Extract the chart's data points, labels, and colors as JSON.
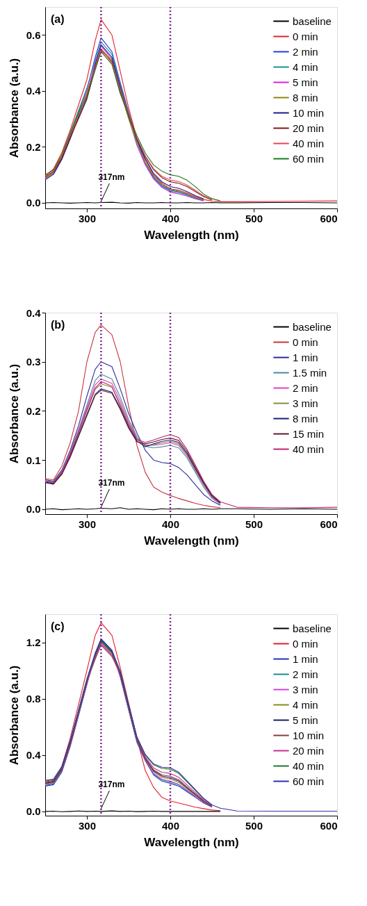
{
  "chart_data": [
    {
      "type": "line",
      "title": "(a)",
      "xlabel": "Wavelength (nm)",
      "ylabel": "Absorbance (a.u.)",
      "xlim": [
        250,
        600
      ],
      "ylim": [
        -0.02,
        0.7
      ],
      "xticks": [
        300,
        400,
        500,
        600
      ],
      "yticks": [
        {
          "value": 0,
          "label": "0.0"
        },
        {
          "value": 0.2,
          "label": "0.2"
        },
        {
          "value": 0.4,
          "label": "0.4"
        },
        {
          "value": 0.6,
          "label": "0.6"
        }
      ],
      "grid": false,
      "legend": "top right",
      "marker": "none",
      "line_style": "solid",
      "ref_lines": [
        {
          "axis": "x",
          "value": 317,
          "color": "#7b2a8a",
          "line_style": "dotted",
          "label": "317nm"
        },
        {
          "axis": "x",
          "value": 400,
          "color": "#7b2a8a",
          "line_style": "dotted"
        }
      ],
      "x": [
        250,
        260,
        270,
        280,
        290,
        300,
        310,
        317,
        330,
        340,
        350,
        360,
        370,
        380,
        390,
        400,
        410,
        420,
        430,
        440,
        450,
        460,
        480,
        520,
        560,
        600
      ],
      "series": [
        {
          "name": "baseline",
          "color": "#000000",
          "values": [
            0,
            0.001,
            0,
            -0.001,
            0,
            0.001,
            0,
            0.001,
            0.002,
            0,
            -0.001,
            0.001,
            0,
            0,
            0.001,
            0,
            0,
            0.001,
            0,
            0,
            0.001,
            0,
            0,
            0.001,
            0.001,
            0
          ]
        },
        {
          "name": "0 min",
          "color": "#e8202a",
          "values": [
            0.096,
            0.121,
            0.18,
            0.26,
            0.35,
            0.44,
            0.58,
            0.655,
            0.6,
            0.47,
            0.34,
            0.23,
            0.155,
            0.1,
            0.07,
            0.05,
            0.045,
            0.035,
            0.022,
            0.012,
            0.006,
            0.004,
            0.004,
            0.005,
            0.006,
            0.007
          ]
        },
        {
          "name": "2 min",
          "color": "#1f3de0",
          "values": [
            null,
            null,
            null,
            0.245,
            0.325,
            0.405,
            0.52,
            0.59,
            0.54,
            0.43,
            0.325,
            0.225,
            0.145,
            0.092,
            0.062,
            0.045,
            0.04,
            0.03,
            0.018,
            0.01,
            null,
            null,
            null,
            null,
            null,
            null
          ]
        },
        {
          "name": "4 min",
          "color": "#1a9090",
          "values": [
            0.09,
            0.11,
            0.17,
            0.25,
            0.33,
            0.41,
            0.51,
            0.575,
            0.53,
            0.425,
            0.32,
            0.215,
            0.14,
            0.088,
            0.058,
            0.042,
            0.036,
            0.027,
            0.016,
            0.008,
            null,
            null,
            null,
            null,
            null,
            null
          ]
        },
        {
          "name": "5 min",
          "color": "#e020e0",
          "values": [
            0.088,
            0.104,
            0.158,
            0.232,
            0.31,
            0.39,
            0.5,
            0.56,
            0.515,
            0.41,
            0.305,
            0.205,
            0.135,
            0.085,
            0.055,
            0.038,
            0.032,
            0.024,
            0.014,
            0.007,
            null,
            null,
            null,
            null,
            null,
            null
          ]
        },
        {
          "name": "8 min",
          "color": "#8a8a10",
          "values": [
            0.084,
            0.108,
            0.162,
            0.238,
            0.315,
            0.385,
            0.49,
            0.55,
            0.51,
            0.4,
            0.3,
            0.21,
            0.145,
            0.097,
            0.066,
            0.048,
            0.042,
            0.032,
            0.02,
            0.011,
            null,
            null,
            null,
            null,
            null,
            null
          ]
        },
        {
          "name": "10 min",
          "color": "#1a1a8a",
          "values": [
            0.082,
            0.102,
            0.155,
            0.228,
            0.305,
            0.375,
            0.495,
            0.565,
            0.52,
            0.415,
            0.315,
            0.225,
            0.158,
            0.105,
            0.075,
            0.058,
            0.052,
            0.04,
            0.026,
            0.014,
            null,
            null,
            null,
            null,
            null,
            null
          ]
        },
        {
          "name": "20 min",
          "color": "#7a1a1a",
          "values": [
            0.092,
            0.112,
            0.16,
            0.235,
            0.3,
            0.37,
            0.48,
            0.545,
            0.505,
            0.395,
            0.31,
            0.228,
            0.165,
            0.118,
            0.09,
            0.075,
            0.07,
            0.058,
            0.04,
            0.022,
            0.01,
            null,
            null,
            null,
            null,
            null
          ]
        },
        {
          "name": "40 min",
          "color": "#f04050",
          "values": [
            0.094,
            0.114,
            0.168,
            0.242,
            0.32,
            0.395,
            0.485,
            0.55,
            0.5,
            0.405,
            0.318,
            0.232,
            0.168,
            0.122,
            0.095,
            0.082,
            0.076,
            0.064,
            0.045,
            0.025,
            0.012,
            null,
            null,
            null,
            null,
            null
          ]
        },
        {
          "name": "60 min",
          "color": "#1a7a1a",
          "values": [
            0.1,
            0.118,
            0.172,
            0.248,
            0.322,
            0.38,
            0.475,
            0.54,
            0.495,
            0.39,
            0.312,
            0.24,
            0.178,
            0.135,
            0.113,
            0.1,
            0.095,
            0.081,
            0.058,
            0.031,
            0.015,
            0.007,
            null,
            null,
            null,
            null
          ]
        }
      ]
    },
    {
      "type": "line",
      "title": "(b)",
      "xlabel": "Wavelength (nm)",
      "ylabel": "Absorbance (a.u.)",
      "xlim": [
        250,
        600
      ],
      "ylim": [
        -0.01,
        0.4
      ],
      "xticks": [
        300,
        400,
        500,
        600
      ],
      "yticks": [
        {
          "value": 0,
          "label": "0.0"
        },
        0.1,
        0.2,
        0.3,
        0.4
      ],
      "grid": false,
      "legend": "top right",
      "marker": "none",
      "line_style": "solid",
      "ref_lines": [
        {
          "axis": "x",
          "value": 317,
          "color": "#7b2a8a",
          "line_style": "dotted",
          "label": "317nm"
        },
        {
          "axis": "x",
          "value": 400,
          "color": "#7b2a8a",
          "line_style": "dotted"
        }
      ],
      "x": [
        250,
        260,
        270,
        280,
        290,
        300,
        310,
        317,
        330,
        340,
        350,
        360,
        370,
        380,
        390,
        400,
        410,
        420,
        430,
        440,
        450,
        460,
        480,
        520,
        560,
        600
      ],
      "series": [
        {
          "name": "baseline",
          "color": "#000000",
          "values": [
            0,
            0.001,
            -0.001,
            0,
            0.001,
            0,
            0.001,
            0.002,
            0.001,
            0.003,
            0,
            0.001,
            0,
            -0.001,
            0.001,
            0,
            0.001,
            0,
            0,
            0.001,
            0,
            0.001,
            0.001,
            0,
            0.001,
            0
          ]
        },
        {
          "name": "0 min",
          "color": "#c8323c",
          "values": [
            0.062,
            0.06,
            0.088,
            0.135,
            0.2,
            0.3,
            0.36,
            0.375,
            0.355,
            0.3,
            0.21,
            0.13,
            0.075,
            0.045,
            0.035,
            0.028,
            0.022,
            0.017,
            0.012,
            0.008,
            0.005,
            0.003,
            null,
            null,
            null,
            null
          ]
        },
        {
          "name": "1 min",
          "color": "#2b2b9a",
          "values": [
            0.06,
            0.057,
            0.08,
            0.12,
            0.17,
            0.23,
            0.285,
            0.3,
            0.29,
            0.245,
            0.195,
            0.155,
            0.12,
            0.1,
            0.095,
            0.093,
            0.085,
            0.07,
            0.05,
            0.03,
            0.017,
            0.008,
            null,
            null,
            null,
            null
          ]
        },
        {
          "name": "1.5 min",
          "color": "#4a8a9a",
          "values": [
            0.058,
            0.056,
            0.078,
            0.117,
            0.162,
            0.212,
            0.262,
            0.275,
            0.265,
            0.228,
            0.183,
            0.148,
            0.128,
            0.125,
            0.127,
            0.13,
            0.125,
            0.105,
            0.075,
            0.045,
            0.022,
            0.01,
            null,
            null,
            null,
            null
          ]
        },
        {
          "name": "2 min",
          "color": "#e040c0",
          "values": [
            0.057,
            0.054,
            0.076,
            0.114,
            0.159,
            0.207,
            0.253,
            0.265,
            0.256,
            0.22,
            0.178,
            0.144,
            0.131,
            0.13,
            0.132,
            0.135,
            0.13,
            0.109,
            0.079,
            0.049,
            0.024,
            0.011,
            null,
            null,
            null,
            null
          ]
        },
        {
          "name": "3 min",
          "color": "#8a8a40",
          "values": [
            0.056,
            0.053,
            0.074,
            0.111,
            0.155,
            0.2,
            0.244,
            0.255,
            0.248,
            0.214,
            0.174,
            0.142,
            0.129,
            0.131,
            0.135,
            0.138,
            0.133,
            0.112,
            0.081,
            0.051,
            0.026,
            0.012,
            null,
            null,
            null,
            null
          ]
        },
        {
          "name": "8 min",
          "color": "#1a1a7a",
          "values": [
            0.055,
            0.052,
            0.072,
            0.108,
            0.15,
            0.193,
            0.234,
            0.245,
            0.238,
            0.206,
            0.168,
            0.139,
            0.127,
            0.133,
            0.138,
            0.141,
            0.136,
            0.114,
            0.083,
            0.053,
            0.027,
            0.013,
            null,
            null,
            null,
            null
          ]
        },
        {
          "name": "15 min",
          "color": "#5a1a2a",
          "values": [
            0.054,
            0.051,
            0.071,
            0.106,
            0.148,
            0.19,
            0.232,
            0.242,
            0.236,
            0.203,
            0.165,
            0.137,
            0.133,
            0.137,
            0.142,
            0.145,
            0.14,
            0.118,
            0.086,
            0.055,
            0.028,
            0.014,
            null,
            null,
            null,
            null
          ]
        },
        {
          "name": "40 min",
          "color": "#c02070",
          "values": [
            0.056,
            0.055,
            0.075,
            0.112,
            0.156,
            0.202,
            0.246,
            0.26,
            0.25,
            0.21,
            0.172,
            0.142,
            0.136,
            0.141,
            0.147,
            0.152,
            0.146,
            0.122,
            0.09,
            0.057,
            0.03,
            0.015,
            0.004,
            0.003,
            0.003,
            0.004
          ]
        }
      ]
    },
    {
      "type": "line",
      "title": "(c)",
      "xlabel": "Wavelength (nm)",
      "ylabel": "Absorbance (a.u.)",
      "xlim": [
        250,
        600
      ],
      "ylim": [
        -0.03,
        1.4
      ],
      "xticks": [
        300,
        400,
        500,
        600
      ],
      "yticks": [
        {
          "value": 0,
          "label": "0.0"
        },
        0.4,
        0.8,
        1.2
      ],
      "grid": false,
      "legend": "top right",
      "marker": "none",
      "line_style": "solid",
      "ref_lines": [
        {
          "axis": "x",
          "value": 317,
          "color": "#7b2a8a",
          "line_style": "dotted",
          "label": "317nm"
        },
        {
          "axis": "x",
          "value": 400,
          "color": "#7b2a8a",
          "line_style": "dotted"
        }
      ],
      "x": [
        250,
        260,
        270,
        280,
        290,
        300,
        310,
        317,
        330,
        340,
        350,
        360,
        370,
        380,
        390,
        400,
        410,
        420,
        430,
        440,
        450,
        460,
        480,
        520,
        560,
        600
      ],
      "series": [
        {
          "name": "baseline",
          "color": "#000000",
          "values": [
            0,
            0.002,
            -0.002,
            0,
            0.003,
            0,
            0.002,
            0,
            0.004,
            0,
            0.002,
            -0.001,
            0,
            0.002,
            0,
            0.001,
            0,
            0.001,
            0,
            0,
            0.001,
            0,
            null,
            null,
            null,
            null
          ]
        },
        {
          "name": "0 min",
          "color": "#e0202a",
          "values": [
            0.2,
            0.21,
            0.32,
            0.52,
            0.76,
            1.0,
            1.25,
            1.34,
            1.25,
            1.02,
            0.77,
            0.52,
            0.29,
            0.17,
            0.1,
            0.075,
            0.06,
            0.045,
            0.03,
            0.02,
            0.01,
            0.006,
            null,
            null,
            null,
            null
          ]
        },
        {
          "name": "1 min",
          "color": "#2030c0",
          "values": [
            0.18,
            0.19,
            0.28,
            0.46,
            0.68,
            0.9,
            1.12,
            1.22,
            1.14,
            0.955,
            0.72,
            0.49,
            0.36,
            0.26,
            0.215,
            0.2,
            0.18,
            0.14,
            0.1,
            0.06,
            0.03,
            null,
            null,
            null,
            null,
            null
          ]
        },
        {
          "name": "2 min",
          "color": "#1a8a8a",
          "values": [
            0.185,
            0.195,
            0.285,
            null,
            null,
            null,
            null,
            null,
            null,
            null,
            null,
            null,
            null,
            0.267,
            0.224,
            0.21,
            0.189,
            0.147,
            0.105,
            null,
            null,
            null,
            null,
            null,
            null,
            null
          ]
        },
        {
          "name": "3 min",
          "color": "#d040e0",
          "values": [
            0.19,
            0.2,
            0.29,
            0.47,
            0.69,
            0.91,
            1.09,
            1.19,
            1.11,
            0.965,
            0.73,
            0.5,
            0.366,
            0.27,
            0.229,
            0.215,
            0.194,
            0.151,
            0.108,
            0.065,
            0.032,
            null,
            null,
            null,
            null,
            null
          ]
        },
        {
          "name": "4 min",
          "color": "#8a8a1a",
          "values": [
            0.195,
            0.205,
            0.295,
            0.475,
            0.695,
            0.915,
            1.105,
            1.205,
            1.125,
            0.97,
            0.735,
            0.505,
            0.372,
            0.281,
            0.242,
            0.23,
            0.207,
            0.161,
            0.115,
            0.069,
            0.035,
            null,
            null,
            null,
            null,
            null
          ]
        },
        {
          "name": "5 min",
          "color": "#1a1a6a",
          "values": [
            0.2,
            0.21,
            0.3,
            0.48,
            0.7,
            0.92,
            1.11,
            1.21,
            1.13,
            0.975,
            0.74,
            0.51,
            0.376,
            0.288,
            0.251,
            0.24,
            0.216,
            0.168,
            0.12,
            0.072,
            0.036,
            null,
            null,
            null,
            null,
            null
          ]
        },
        {
          "name": "10 min",
          "color": "#8a3a3a",
          "values": [
            0.205,
            0.215,
            0.305,
            0.485,
            0.705,
            0.925,
            1.08,
            1.18,
            1.1,
            0.98,
            0.745,
            0.515,
            0.38,
            0.295,
            0.26,
            0.25,
            0.225,
            0.175,
            0.125,
            0.075,
            0.038,
            null,
            null,
            null,
            null,
            null
          ]
        },
        {
          "name": "20 min",
          "color": "#c03090",
          "values": [
            0.21,
            0.22,
            0.31,
            0.49,
            0.71,
            0.93,
            1.095,
            1.195,
            1.115,
            0.985,
            0.75,
            0.52,
            0.388,
            0.309,
            0.278,
            0.27,
            0.243,
            0.189,
            0.135,
            0.081,
            0.041,
            null,
            null,
            null,
            null,
            null
          ]
        },
        {
          "name": "40 min",
          "color": "#1a7a2a",
          "values": [
            0.215,
            0.225,
            0.315,
            0.495,
            0.715,
            0.935,
            1.115,
            1.215,
            1.135,
            0.99,
            0.755,
            0.525,
            0.4,
            0.33,
            0.305,
            0.3,
            0.27,
            0.21,
            0.15,
            0.09,
            0.045,
            null,
            null,
            null,
            null,
            null
          ]
        },
        {
          "name": "60 min",
          "color": "#3030b0",
          "values": [
            0.22,
            0.23,
            0.32,
            0.5,
            0.72,
            0.94,
            1.125,
            1.225,
            1.145,
            0.995,
            0.76,
            0.53,
            0.404,
            0.337,
            0.314,
            0.31,
            0.279,
            0.217,
            0.155,
            0.093,
            0.047,
            0.023,
            0.003,
            0.002,
            0.002,
            0.002
          ]
        }
      ]
    }
  ]
}
